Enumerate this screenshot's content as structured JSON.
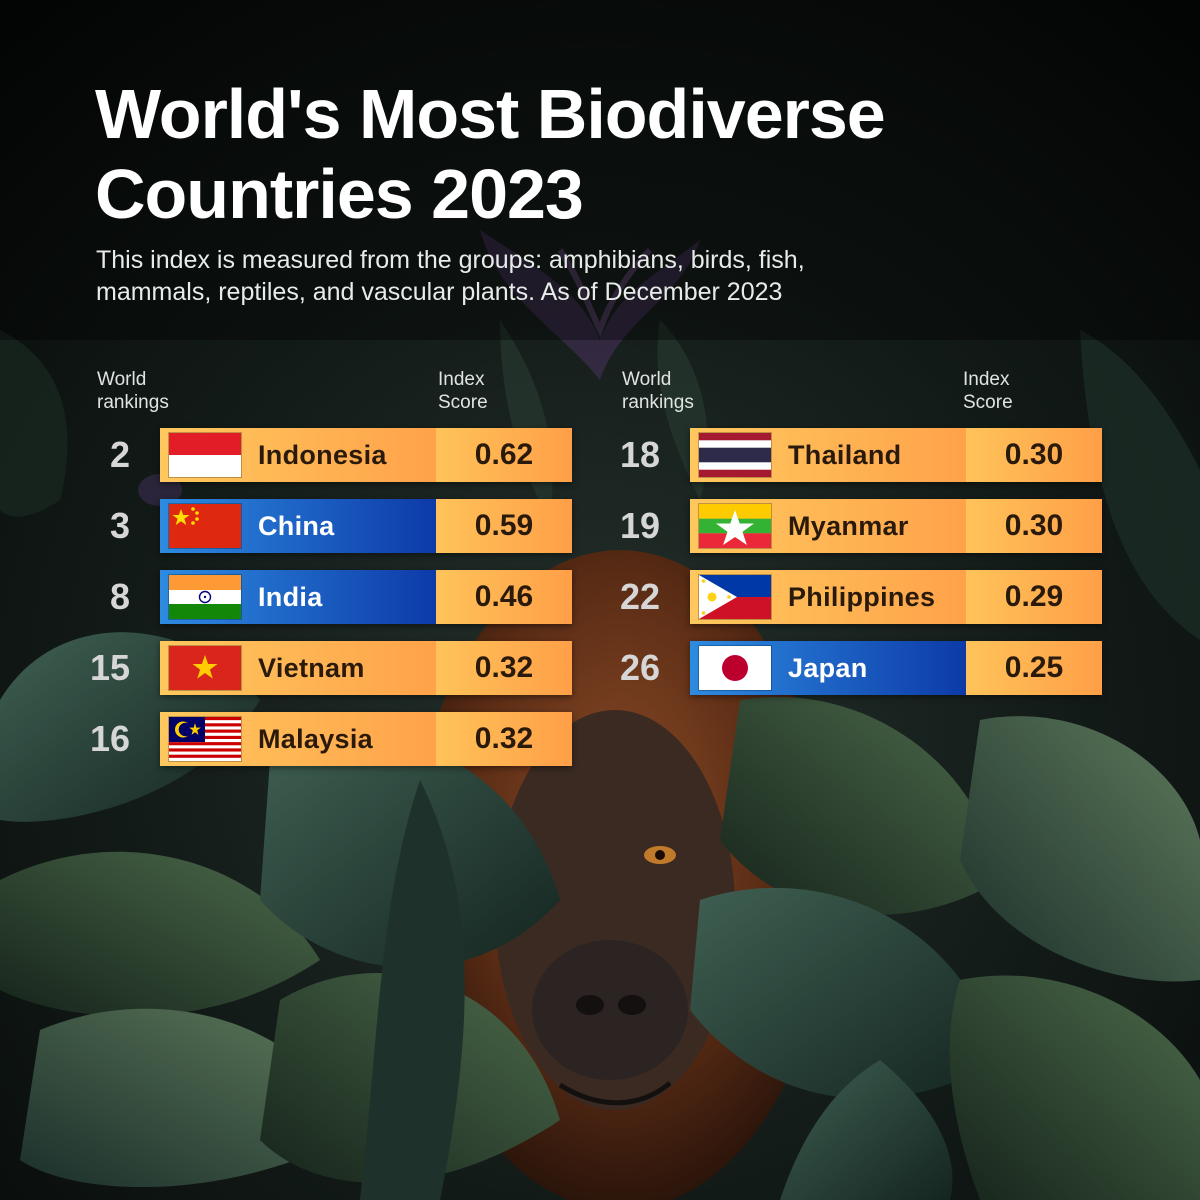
{
  "header": {
    "title_lines": [
      "World's Most Biodiverse",
      "Countries 2023"
    ],
    "subtitle_lines": [
      "This index is measured from the groups: amphibians, birds, fish,",
      "mammals, reptiles, and vascular plants. As of December 2023"
    ]
  },
  "labels": {
    "rankings_lines": [
      "World",
      "rankings"
    ],
    "score_lines": [
      "Index",
      "Score"
    ]
  },
  "colors": {
    "orange_bar": "#ffb052",
    "blue_bar": "#1f5fc6",
    "score_cell": "#ffb052"
  },
  "table": {
    "left": [
      {
        "rank": "2",
        "country": "Indonesia",
        "score": "0.62",
        "flag": "indonesia-flag-icon",
        "style": "orange"
      },
      {
        "rank": "3",
        "country": "China",
        "score": "0.59",
        "flag": "china-flag-icon",
        "style": "blue"
      },
      {
        "rank": "8",
        "country": "India",
        "score": "0.46",
        "flag": "india-flag-icon",
        "style": "blue"
      },
      {
        "rank": "15",
        "country": "Vietnam",
        "score": "0.32",
        "flag": "vietnam-flag-icon",
        "style": "orange"
      },
      {
        "rank": "16",
        "country": "Malaysia",
        "score": "0.32",
        "flag": "malaysia-flag-icon",
        "style": "orange"
      }
    ],
    "right": [
      {
        "rank": "18",
        "country": "Thailand",
        "score": "0.30",
        "flag": "thailand-flag-icon",
        "style": "orange"
      },
      {
        "rank": "19",
        "country": "Myanmar",
        "score": "0.30",
        "flag": "myanmar-flag-icon",
        "style": "orange"
      },
      {
        "rank": "22",
        "country": "Philippines",
        "score": "0.29",
        "flag": "philippines-flag-icon",
        "style": "orange"
      },
      {
        "rank": "26",
        "country": "Japan",
        "score": "0.25",
        "flag": "japan-flag-icon",
        "style": "blue"
      }
    ]
  },
  "background": {
    "subject": "orangutan-in-jungle-leaves-illustration"
  }
}
